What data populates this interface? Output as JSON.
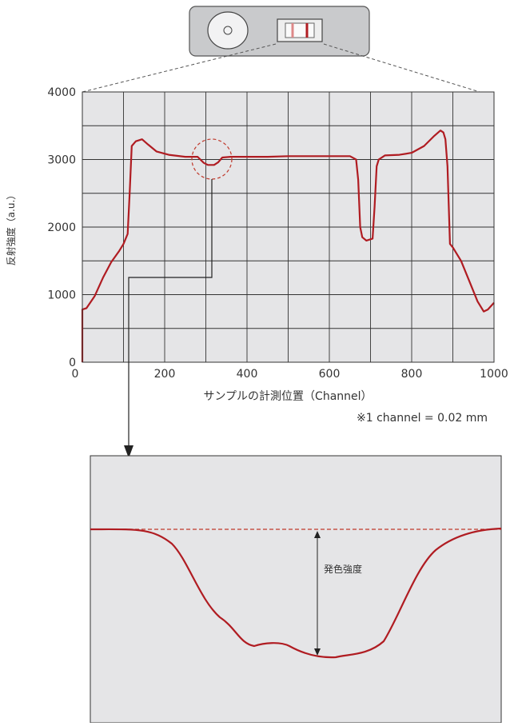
{
  "chart_data": {
    "type": "line",
    "x_label": "サンプルの計測位置（Channel）",
    "y_label": "反射強度（a.u.）",
    "note": "※1 channel = 0.02 mm",
    "annotation": "発色強度",
    "xlim": [
      0,
      1000
    ],
    "ylim": [
      0,
      4000
    ],
    "xticks": [
      0,
      200,
      400,
      600,
      800,
      1000
    ],
    "yticks": [
      0,
      1000,
      2000,
      3000,
      4000
    ],
    "x_minor_grid": [
      100,
      300,
      500,
      700,
      900
    ],
    "y_minor_grid": [
      500,
      1500,
      2500,
      3500
    ],
    "grid": true,
    "series": [
      {
        "color": "#b01c22",
        "x": [
          0,
          0,
          10,
          30,
          50,
          70,
          90,
          100,
          110,
          115,
          120,
          130,
          145,
          160,
          180,
          210,
          250,
          280,
          295,
          305,
          320,
          330,
          340,
          360,
          400,
          450,
          500,
          550,
          600,
          650,
          665,
          670,
          675,
          680,
          690,
          705,
          710,
          715,
          720,
          735,
          770,
          800,
          830,
          855,
          870,
          877,
          882,
          887,
          893,
          900,
          920,
          940,
          960,
          975,
          985,
          1000
        ],
        "values": [
          0,
          780,
          800,
          980,
          1250,
          1480,
          1650,
          1750,
          1900,
          2500,
          3200,
          3270,
          3300,
          3220,
          3120,
          3070,
          3040,
          3040,
          2950,
          2920,
          2920,
          2960,
          3030,
          3040,
          3040,
          3040,
          3050,
          3050,
          3050,
          3050,
          3000,
          2700,
          2000,
          1850,
          1800,
          1830,
          2300,
          2900,
          3000,
          3060,
          3070,
          3100,
          3200,
          3350,
          3430,
          3400,
          3300,
          2900,
          1750,
          1700,
          1500,
          1200,
          900,
          750,
          780,
          880
        ]
      }
    ]
  }
}
